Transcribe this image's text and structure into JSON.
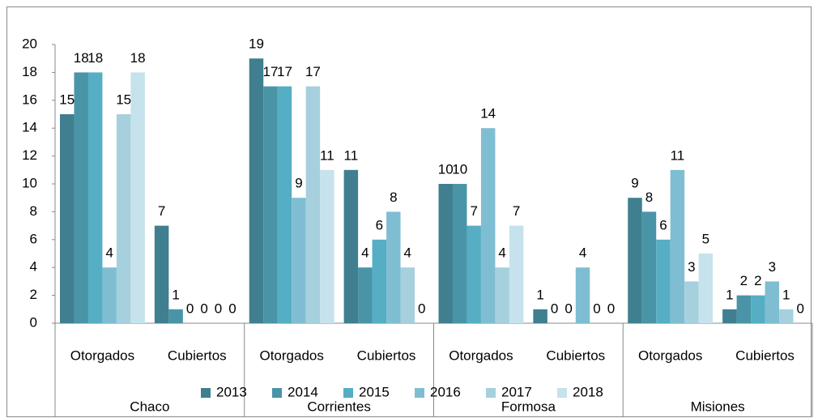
{
  "chart_data": {
    "type": "bar",
    "categories": [
      "Otorgados",
      "Cubiertos",
      "Otorgados",
      "Cubiertos",
      "Otorgados",
      "Cubiertos",
      "Otorgados",
      "Cubiertos"
    ],
    "groups": [
      "Chaco",
      "Corrientes",
      "Formosa",
      "Misiones"
    ],
    "series": [
      {
        "name": "2013",
        "color": "#3f7f8f",
        "values": [
          15,
          7,
          19,
          11,
          10,
          1,
          9,
          1
        ]
      },
      {
        "name": "2014",
        "color": "#4a94a8",
        "values": [
          18,
          1,
          17,
          4,
          10,
          0,
          8,
          2
        ]
      },
      {
        "name": "2015",
        "color": "#55aec4",
        "values": [
          18,
          0,
          17,
          6,
          7,
          0,
          6,
          2
        ]
      },
      {
        "name": "2016",
        "color": "#7fbed2",
        "values": [
          4,
          0,
          9,
          8,
          14,
          4,
          11,
          3
        ]
      },
      {
        "name": "2017",
        "color": "#a6d0de",
        "values": [
          15,
          0,
          17,
          4,
          4,
          0,
          3,
          1
        ]
      },
      {
        "name": "2018",
        "color": "#c6e2ec",
        "values": [
          18,
          0,
          11,
          0,
          7,
          0,
          5,
          0
        ]
      }
    ],
    "ylim": [
      0,
      20
    ],
    "yticks": [
      0,
      2,
      4,
      6,
      8,
      10,
      12,
      14,
      16,
      18,
      20
    ],
    "grid": false,
    "legend": "bottom"
  }
}
